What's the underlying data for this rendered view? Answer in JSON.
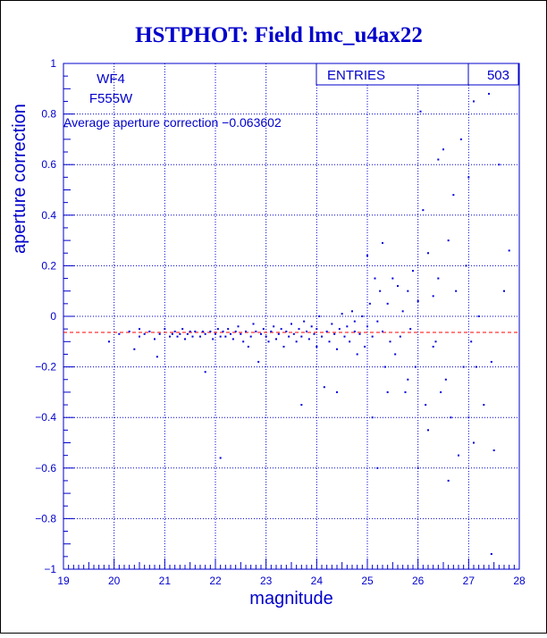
{
  "colors": {
    "axis": "#0000cc",
    "points": "#0000dd",
    "reference_line": "#ff0000",
    "title": "#0000cc"
  },
  "chart_data": {
    "type": "scatter",
    "title": "HSTPHOT: Field lmc_u4ax22",
    "xlabel": "magnitude",
    "ylabel": "aperture correction",
    "xlim": [
      19,
      28
    ],
    "ylim": [
      -1,
      1
    ],
    "x_ticks": [
      19,
      20,
      21,
      22,
      23,
      24,
      25,
      26,
      27,
      28
    ],
    "y_ticks": [
      -1,
      -0.8,
      -0.6,
      -0.4,
      -0.2,
      0,
      0.2,
      0.4,
      0.6,
      0.8,
      1
    ],
    "grid": true,
    "stats_box": {
      "label": "ENTRIES",
      "value": "503"
    },
    "annotations": {
      "chip": "WF4",
      "filter": "F555W",
      "average": "Average aperture correction  −0.063602"
    },
    "reference_line": {
      "y": -0.063602,
      "style": "dashed"
    },
    "points": [
      [
        19.9,
        -0.1
      ],
      [
        20.1,
        -0.07
      ],
      [
        20.3,
        -0.06
      ],
      [
        20.4,
        -0.13
      ],
      [
        20.5,
        -0.05
      ],
      [
        20.5,
        -0.08
      ],
      [
        20.6,
        -0.07
      ],
      [
        20.7,
        -0.06
      ],
      [
        20.8,
        -0.09
      ],
      [
        20.85,
        -0.16
      ],
      [
        20.9,
        -0.07
      ],
      [
        21.0,
        -0.05
      ],
      [
        21.1,
        -0.08
      ],
      [
        21.15,
        -0.07
      ],
      [
        21.2,
        -0.06
      ],
      [
        21.25,
        -0.08
      ],
      [
        21.3,
        -0.07
      ],
      [
        21.35,
        -0.05
      ],
      [
        21.4,
        -0.09
      ],
      [
        21.45,
        -0.07
      ],
      [
        21.5,
        -0.06
      ],
      [
        21.55,
        -0.08
      ],
      [
        21.6,
        -0.06
      ],
      [
        21.7,
        -0.08
      ],
      [
        21.75,
        -0.06
      ],
      [
        21.8,
        -0.07
      ],
      [
        21.8,
        -0.22
      ],
      [
        21.9,
        -0.06
      ],
      [
        21.95,
        -0.09
      ],
      [
        22.0,
        -0.07
      ],
      [
        22.05,
        -0.05
      ],
      [
        22.1,
        -0.08
      ],
      [
        22.1,
        -0.56
      ],
      [
        22.15,
        -0.06
      ],
      [
        22.2,
        -0.08
      ],
      [
        22.25,
        -0.05
      ],
      [
        22.3,
        -0.07
      ],
      [
        22.35,
        -0.09
      ],
      [
        22.4,
        -0.06
      ],
      [
        22.45,
        -0.04
      ],
      [
        22.5,
        -0.07
      ],
      [
        22.55,
        -0.1
      ],
      [
        22.6,
        -0.06
      ],
      [
        22.65,
        -0.12
      ],
      [
        22.7,
        -0.08
      ],
      [
        22.75,
        -0.03
      ],
      [
        22.8,
        -0.06
      ],
      [
        22.85,
        -0.18
      ],
      [
        22.9,
        -0.07
      ],
      [
        22.95,
        -0.05
      ],
      [
        23.0,
        -0.08
      ],
      [
        23.05,
        -0.1
      ],
      [
        23.1,
        -0.06
      ],
      [
        23.15,
        -0.04
      ],
      [
        23.2,
        -0.09
      ],
      [
        23.25,
        -0.07
      ],
      [
        23.3,
        -0.05
      ],
      [
        23.35,
        -0.12
      ],
      [
        23.4,
        -0.06
      ],
      [
        23.45,
        -0.08
      ],
      [
        23.5,
        -0.03
      ],
      [
        23.55,
        -0.07
      ],
      [
        23.6,
        -0.1
      ],
      [
        23.65,
        -0.05
      ],
      [
        23.7,
        -0.08
      ],
      [
        23.7,
        -0.35
      ],
      [
        23.75,
        -0.02
      ],
      [
        23.8,
        -0.06
      ],
      [
        23.85,
        -0.09
      ],
      [
        23.9,
        -0.04
      ],
      [
        23.95,
        -0.07
      ],
      [
        24.0,
        -0.05
      ],
      [
        24.0,
        -0.12
      ],
      [
        24.05,
        0.0
      ],
      [
        24.1,
        -0.08
      ],
      [
        24.15,
        -0.28
      ],
      [
        24.2,
        -0.06
      ],
      [
        24.25,
        -0.1
      ],
      [
        24.3,
        -0.03
      ],
      [
        24.35,
        -0.07
      ],
      [
        24.4,
        -0.13
      ],
      [
        24.4,
        -0.3
      ],
      [
        24.45,
        -0.05
      ],
      [
        24.5,
        0.01
      ],
      [
        24.55,
        -0.08
      ],
      [
        24.6,
        -0.04
      ],
      [
        24.65,
        -0.1
      ],
      [
        24.7,
        0.02
      ],
      [
        24.75,
        -0.06
      ],
      [
        24.8,
        -0.15
      ],
      [
        24.85,
        -0.07
      ],
      [
        24.9,
        0.0
      ],
      [
        24.95,
        -0.12
      ],
      [
        25.0,
        0.24
      ],
      [
        25.0,
        -0.04
      ],
      [
        25.05,
        0.05
      ],
      [
        25.1,
        -0.08
      ],
      [
        25.1,
        -0.4
      ],
      [
        25.15,
        0.15
      ],
      [
        25.2,
        -0.02
      ],
      [
        25.2,
        -0.6
      ],
      [
        25.25,
        0.1
      ],
      [
        25.3,
        -0.06
      ],
      [
        25.3,
        0.29
      ],
      [
        25.35,
        -0.2
      ],
      [
        25.4,
        0.05
      ],
      [
        25.45,
        -0.1
      ],
      [
        25.5,
        0.15
      ],
      [
        25.55,
        -0.15
      ],
      [
        25.6,
        0.12
      ],
      [
        25.65,
        -0.08
      ],
      [
        25.7,
        0.02
      ],
      [
        25.75,
        -0.3
      ],
      [
        25.8,
        0.1
      ],
      [
        25.85,
        -0.05
      ],
      [
        25.9,
        0.18
      ],
      [
        25.95,
        -0.2
      ],
      [
        26.0,
        -0.6
      ],
      [
        26.0,
        0.06
      ],
      [
        26.05,
        0.81
      ],
      [
        26.1,
        0.42
      ],
      [
        26.15,
        -0.35
      ],
      [
        26.2,
        0.25
      ],
      [
        26.2,
        -0.45
      ],
      [
        26.25,
        0.94
      ],
      [
        26.3,
        0.08
      ],
      [
        26.35,
        -0.1
      ],
      [
        26.4,
        0.15
      ],
      [
        26.4,
        0.62
      ],
      [
        26.45,
        -0.3
      ],
      [
        26.5,
        0.66
      ],
      [
        26.55,
        -0.25
      ],
      [
        26.6,
        0.3
      ],
      [
        26.65,
        -0.4
      ],
      [
        26.7,
        0.48
      ],
      [
        26.75,
        0.1
      ],
      [
        26.8,
        -0.55
      ],
      [
        26.85,
        0.7
      ],
      [
        26.9,
        -0.2
      ],
      [
        26.95,
        0.2
      ],
      [
        27.0,
        -0.4
      ],
      [
        27.0,
        0.55
      ],
      [
        27.05,
        -0.1
      ],
      [
        27.1,
        0.85
      ],
      [
        27.15,
        -0.2
      ],
      [
        27.2,
        0.0
      ],
      [
        27.3,
        -0.35
      ],
      [
        27.4,
        0.88
      ],
      [
        27.45,
        -0.18
      ],
      [
        27.5,
        -0.53
      ],
      [
        27.6,
        0.6
      ],
      [
        27.7,
        0.1
      ],
      [
        27.8,
        0.26
      ],
      [
        27.45,
        -0.94
      ],
      [
        27.1,
        -0.5
      ],
      [
        26.6,
        -0.65
      ],
      [
        26.3,
        -0.12
      ],
      [
        25.8,
        -0.25
      ],
      [
        25.4,
        -0.3
      ],
      [
        24.75,
        -0.02
      ]
    ]
  }
}
